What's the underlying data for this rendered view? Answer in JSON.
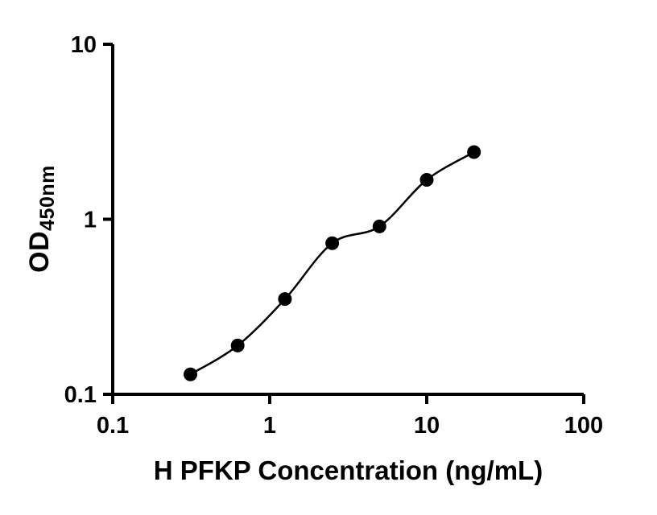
{
  "chart_data": {
    "type": "scatter",
    "title": "",
    "xlabel": "H PFKP Concentration (ng/mL)",
    "ylabel_main": "OD",
    "ylabel_sub": "450nm",
    "xscale": "log",
    "yscale": "log",
    "xlim": [
      0.1,
      100
    ],
    "ylim": [
      0.1,
      10
    ],
    "x_ticks": [
      0.1,
      1,
      10,
      100
    ],
    "x_tick_labels": [
      "0.1",
      "1",
      "10",
      "100"
    ],
    "y_ticks": [
      0.1,
      1,
      10
    ],
    "y_tick_labels": [
      "0.1",
      "1",
      "10"
    ],
    "grid": false,
    "legend": "none",
    "marker": "filled-circle",
    "marker_color": "#000000",
    "line_color": "#000000",
    "axis_color": "#000000",
    "background": "#ffffff",
    "fit_curve": true,
    "series": [
      {
        "x": [
          0.3125,
          0.625,
          1.25,
          2.5,
          5,
          10,
          20
        ],
        "y": [
          0.13,
          0.19,
          0.35,
          0.73,
          0.91,
          1.68,
          2.42
        ]
      }
    ]
  }
}
